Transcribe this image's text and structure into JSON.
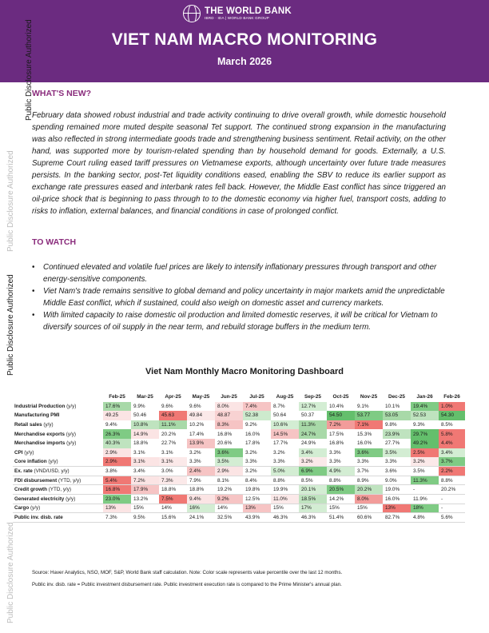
{
  "header": {
    "org_name": "THE WORLD BANK",
    "org_sub": "IBRD · IDA | WORLD BANK GROUP",
    "title": "VIET NAM MACRO MONITORING",
    "date": "March 2026",
    "bg_color": "#6b2b80"
  },
  "disclosure": {
    "label": "Public Disclosure Authorized"
  },
  "whats_new": {
    "heading": "WHAT'S NEW?",
    "text": "February data showed robust industrial and trade activity continuing to drive overall growth, while domestic household spending remained more muted despite seasonal Tet support. The continued strong expansion in the manufacturing was also reflected in strong intermediate goods trade and strengthening business sentiment. Retail activity, on the other hand, was supported more by tourism-related spending than by household demand for goods. Externally, a U.S. Supreme Court ruling eased tariff pressures on Vietnamese exports, although uncertainty over future trade measures persists. In the banking sector, post-Tet liquidity conditions eased, enabling the SBV to reduce its earlier support as exchange rate pressures eased and interbank rates fell back. However, the Middle East conflict has since triggered an oil-price shock that is beginning to pass through to to the domestic economy via higher fuel, transport costs, adding to risks to inflation, external balances, and financial conditions in case of prolonged conflict."
  },
  "to_watch": {
    "heading": "TO WATCH",
    "bullets": [
      "Continued elevated and volatile fuel prices are likely to intensify inflationary pressures through transport and other energy-sensitive components.",
      "Viet Nam's trade remains sensitive to global demand and policy uncertainty in major markets amid the unpredictable Middle East conflict, which if sustained, could also weigh on domestic asset and currency markets.",
      "With limited capacity to raise domestic oil production and limited domestic reserves, it will be critical for Vietnam to diversify sources of oil supply in the near term, and rebuild storage buffers in the medium term."
    ]
  },
  "dashboard": {
    "title": "Viet Nam Monthly Macro Monitoring Dashboard",
    "months": [
      "Feb-25",
      "Mar-25",
      "Apr-25",
      "May-25",
      "Jun-25",
      "Jul-25",
      "Aug-25",
      "Sep-25",
      "Oct-25",
      "Nov-25",
      "Dec-25",
      "Jan-26",
      "Feb-26"
    ],
    "rows": [
      {
        "name": "Industrial Production",
        "unit": "(y/y)",
        "values": [
          "17.6%",
          "9.9%",
          "9.6%",
          "9.6%",
          "8.0%",
          "7.4%",
          "8.7%",
          "12.7%",
          "10.4%",
          "9.1%",
          "10.1%",
          "19.4%",
          "1.0%"
        ],
        "colors": [
          "#a8d9a8",
          "",
          "",
          "",
          "#fbe4e4",
          "#f6c4c4",
          "",
          "#d3edd3",
          "",
          "",
          "",
          "#7fcb84",
          "#f07874"
        ]
      },
      {
        "name": "Manufacturing PMI",
        "unit": "",
        "values": [
          "49.25",
          "50.46",
          "45.63",
          "49.84",
          "48.87",
          "52.38",
          "50.64",
          "50.37",
          "54.50",
          "53.77",
          "53.05",
          "52.53",
          "54.30"
        ],
        "colors": [
          "#fbe4e4",
          "",
          "#f07874",
          "#fbe9e9",
          "#f8d2d2",
          "#cdeacd",
          "",
          "",
          "#64bf6c",
          "#7fcb84",
          "#a8d9a8",
          "#bfe3bf",
          "#64bf6c"
        ]
      },
      {
        "name": "Retail sales",
        "unit": "(y/y)",
        "values": [
          "9.4%",
          "10.8%",
          "11.1%",
          "10.2%",
          "8.3%",
          "9.2%",
          "10.6%",
          "11.3%",
          "7.2%",
          "7.1%",
          "9.8%",
          "9.3%",
          "8.5%"
        ],
        "colors": [
          "",
          "#bfe3bf",
          "#a8d9a8",
          "",
          "#f6c4c4",
          "",
          "#d3edd3",
          "#a8d9a8",
          "#f29c9a",
          "#f07874",
          "",
          "",
          ""
        ]
      },
      {
        "name": "Merchandise exports",
        "unit": "(y/y)",
        "values": [
          "26.3%",
          "14.9%",
          "20.2%",
          "17.4%",
          "16.8%",
          "16.0%",
          "14.5%",
          "24.7%",
          "17.5%",
          "15.3%",
          "23.9%",
          "29.7%",
          "5.8%"
        ],
        "colors": [
          "#7fcb84",
          "#fbe4e4",
          "",
          "",
          "",
          "",
          "#f6c4c4",
          "#a8d9a8",
          "",
          "",
          "#bfe3bf",
          "#64bf6c",
          "#f07874"
        ]
      },
      {
        "name": "Merchandise imports",
        "unit": "(y/y)",
        "values": [
          "40.3%",
          "18.8%",
          "22.7%",
          "13.9%",
          "20.6%",
          "17.8%",
          "17.7%",
          "24.9%",
          "16.8%",
          "16.0%",
          "27.7%",
          "49.2%",
          "4.4%"
        ],
        "colors": [
          "#bfe3bf",
          "",
          "",
          "#f6c4c4",
          "",
          "",
          "",
          "",
          "",
          "",
          "",
          "#64bf6c",
          "#f07874"
        ]
      },
      {
        "name": "CPI",
        "unit": "(y/y)",
        "values": [
          "2.9%",
          "3.1%",
          "3.1%",
          "3.2%",
          "3.6%",
          "3.2%",
          "3.2%",
          "3.4%",
          "3.3%",
          "3.6%",
          "3.5%",
          "2.5%",
          "3.4%"
        ],
        "colors": [
          "#fbe4e4",
          "",
          "",
          "",
          "#7fcb84",
          "",
          "",
          "#d3edd3",
          "",
          "#7fcb84",
          "#d3edd3",
          "#f07874",
          "#d3edd3"
        ]
      },
      {
        "name": "Core inflation",
        "unit": "(y/y)",
        "values": [
          "2.9%",
          "3.1%",
          "3.1%",
          "3.3%",
          "3.5%",
          "3.3%",
          "3.3%",
          "3.2%",
          "3.3%",
          "3.3%",
          "3.3%",
          "3.2%",
          "3.7%"
        ],
        "colors": [
          "#f07874",
          "#fbe4e4",
          "#fbe9e9",
          "",
          "#d3edd3",
          "",
          "",
          "#fbe9e9",
          "",
          "",
          "",
          "#fbe9e9",
          "#7fcb84"
        ]
      },
      {
        "name": "Ex. rate",
        "unit": "(VND/USD, y/y)",
        "values": [
          "3.8%",
          "3.4%",
          "3.0%",
          "2.4%",
          "2.9%",
          "3.2%",
          "5.0%",
          "6.9%",
          "4.9%",
          "3.7%",
          "3.6%",
          "3.5%",
          "2.2%"
        ],
        "colors": [
          "",
          "",
          "",
          "#f6c4c4",
          "#fbe4e4",
          "",
          "#d3edd3",
          "#7fcb84",
          "#d3edd3",
          "",
          "",
          "",
          "#f07874"
        ]
      },
      {
        "name": "FDI disbursement",
        "unit": "(YTD, y/y)",
        "values": [
          "5.4%",
          "7.2%",
          "7.3%",
          "7.9%",
          "8.1%",
          "8.4%",
          "8.8%",
          "8.5%",
          "8.8%",
          "8.9%",
          "9.0%",
          "11.3%",
          "8.8%"
        ],
        "colors": [
          "#f07874",
          "#fbe4e4",
          "#fbe9e9",
          "",
          "",
          "",
          "",
          "",
          "",
          "",
          "",
          "#7fcb84",
          ""
        ]
      },
      {
        "name": "Credit growth",
        "unit": "(YTD, y/y)",
        "values": [
          "16.8%",
          "17.9%",
          "18.8%",
          "18.8%",
          "19.2%",
          "19.8%",
          "19.9%",
          "20.1%",
          "20.5%",
          "20.2%",
          "19.0%",
          "-",
          "20.2%"
        ],
        "colors": [
          "#f07874",
          "#f6c4c4",
          "",
          "",
          "",
          "",
          "",
          "#d3edd3",
          "#7fcb84",
          "#bfe3bf",
          "",
          "",
          ""
        ]
      },
      {
        "name": "Generated electricity",
        "unit": "(y/y)",
        "values": [
          "23.0%",
          "13.2%",
          "7.5%",
          "9.4%",
          "9.2%",
          "12.5%",
          "11.0%",
          "18.5%",
          "14.2%",
          "8.0%",
          "16.0%",
          "11.9%",
          "-"
        ],
        "colors": [
          "#7fcb84",
          "",
          "#f07874",
          "#fbe4e4",
          "#f6c4c4",
          "",
          "#fbe9e9",
          "#bfe3bf",
          "",
          "#f29c9a",
          "",
          "",
          ""
        ]
      },
      {
        "name": "Cargo",
        "unit": "(y/y)",
        "values": [
          "13%",
          "15%",
          "14%",
          "16%",
          "14%",
          "13%",
          "15%",
          "17%",
          "15%",
          "15%",
          "13%",
          "18%",
          "-"
        ],
        "colors": [
          "#fbe4e4",
          "",
          "",
          "#d3edd3",
          "",
          "#f6c4c4",
          "",
          "#d3edd3",
          "",
          "",
          "#f07874",
          "#7fcb84",
          ""
        ]
      },
      {
        "name": "Public inv. disb. rate",
        "unit": "",
        "values": [
          "7.3%",
          "9.5%",
          "15.6%",
          "24.1%",
          "32.5%",
          "43.9%",
          "46.3%",
          "46.3%",
          "51.4%",
          "60.6%",
          "82.7%",
          "4.8%",
          "5.6%"
        ],
        "colors": [
          "",
          "",
          "",
          "",
          "",
          "",
          "",
          "",
          "",
          "",
          "",
          "",
          ""
        ]
      }
    ]
  },
  "notes": {
    "source": "Source: Haver Analytics, NSO, MOF, S&P, World Bank staff calculation. Note: Color scale represents value percentile over the last 12 months.",
    "pidr": "Public inv. disb. rate = Public investment disbursement rate. Public investment execution rate is compared to the Prime Minister's annual plan."
  }
}
